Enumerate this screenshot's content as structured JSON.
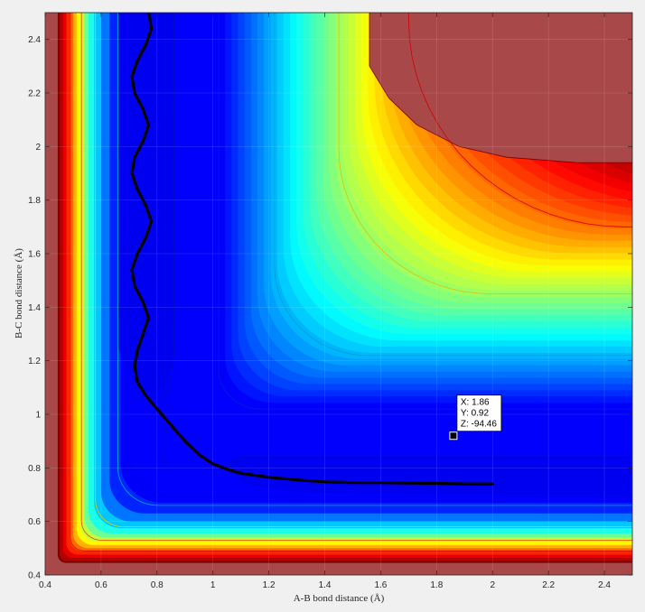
{
  "chart_data": {
    "type": "contour",
    "title": "",
    "xlabel": "A-B bond distance (Å)",
    "ylabel": "B-C bond distance (Å)",
    "xlim": [
      0.4,
      2.5
    ],
    "ylim": [
      0.4,
      2.5
    ],
    "x_ticks": [
      "0.4",
      "0.6",
      "0.8",
      "1",
      "1.2",
      "1.4",
      "1.6",
      "1.8",
      "2",
      "2.2",
      "2.4"
    ],
    "y_ticks": [
      "0.4",
      "0.6",
      "0.8",
      "1",
      "1.2",
      "1.4",
      "1.6",
      "1.8",
      "2",
      "2.2",
      "2.4"
    ],
    "grid": true,
    "colormap": "jet",
    "trajectory": {
      "x": [
        0.77,
        0.78,
        0.76,
        0.73,
        0.71,
        0.72,
        0.75,
        0.77,
        0.75,
        0.72,
        0.71,
        0.73,
        0.76,
        0.78,
        0.76,
        0.73,
        0.71,
        0.72,
        0.75,
        0.77,
        0.75,
        0.73,
        0.72,
        0.73,
        0.76,
        0.8,
        0.85,
        0.9,
        0.95,
        1.0,
        1.05,
        1.1,
        1.2,
        1.3,
        1.4,
        1.5,
        1.6,
        1.7,
        1.8,
        1.9,
        2.0
      ],
      "y": [
        2.5,
        2.44,
        2.38,
        2.32,
        2.26,
        2.2,
        2.14,
        2.08,
        2.02,
        1.96,
        1.9,
        1.84,
        1.78,
        1.72,
        1.66,
        1.6,
        1.54,
        1.48,
        1.42,
        1.36,
        1.3,
        1.24,
        1.18,
        1.12,
        1.07,
        1.02,
        0.96,
        0.9,
        0.85,
        0.815,
        0.795,
        0.78,
        0.765,
        0.755,
        0.748,
        0.745,
        0.745,
        0.743,
        0.742,
        0.74,
        0.74
      ]
    },
    "datatip": {
      "x": 1.86,
      "y": 0.92,
      "lines": [
        "X: 1.86",
        "Y: 0.92",
        "Z: -94.46"
      ]
    }
  }
}
